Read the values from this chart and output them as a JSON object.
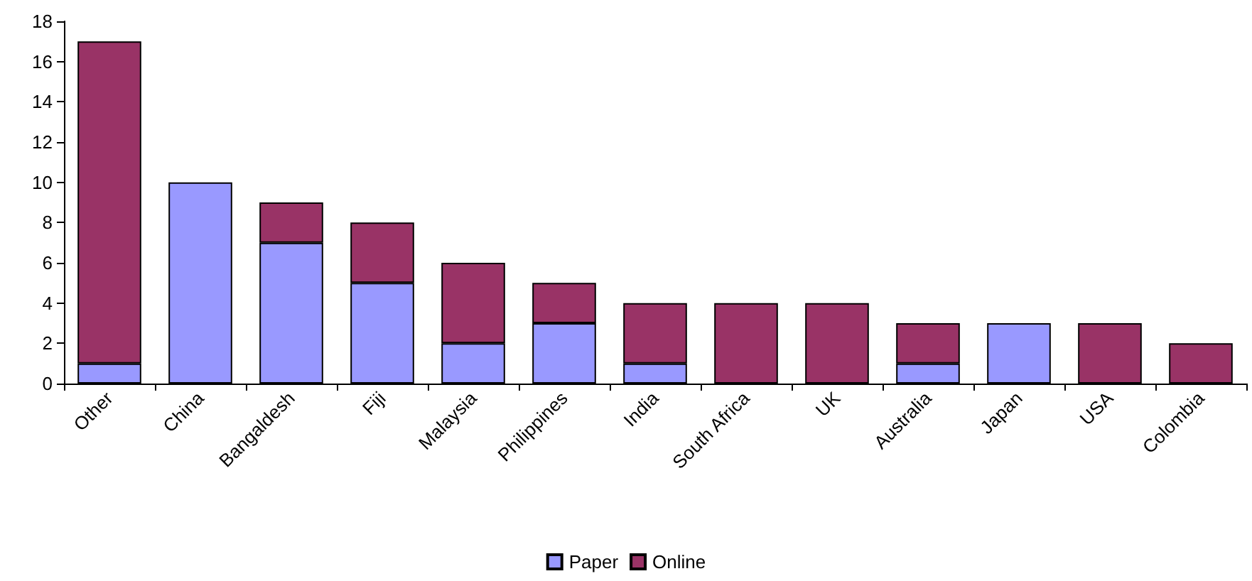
{
  "chart_data": {
    "type": "bar",
    "stacked": true,
    "categories": [
      "Other",
      "China",
      "Bangaldesh",
      "Fiji",
      "Malaysia",
      "Philippines",
      "India",
      "South Africa",
      "UK",
      "Australia",
      "Japan",
      "USA",
      "Colombia"
    ],
    "series": [
      {
        "name": "Paper",
        "color": "#9999ff",
        "values": [
          1,
          10,
          7,
          5,
          2,
          3,
          1,
          0,
          0,
          1,
          3,
          0,
          0
        ]
      },
      {
        "name": "Online",
        "color": "#993366",
        "values": [
          16,
          0,
          2,
          3,
          4,
          2,
          3,
          4,
          4,
          2,
          0,
          3,
          2
        ]
      }
    ],
    "ylim": [
      0,
      18
    ],
    "yticks": [
      0,
      2,
      4,
      6,
      8,
      10,
      12,
      14,
      16,
      18
    ],
    "grid": false,
    "legend": "bottom"
  }
}
